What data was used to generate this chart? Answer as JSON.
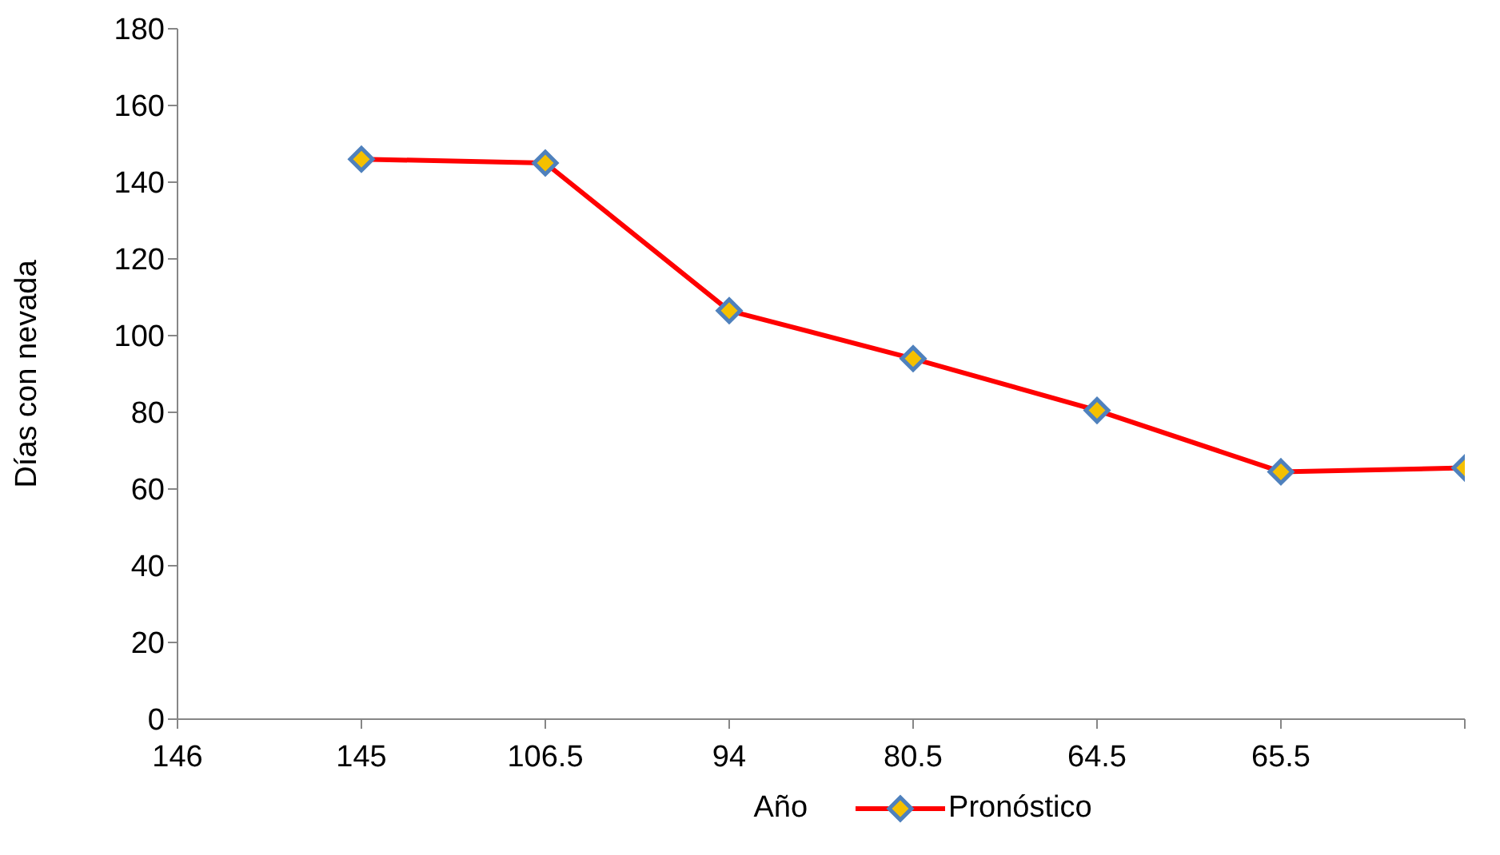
{
  "chart_data": {
    "type": "line",
    "xlabel": "Año",
    "ylabel": "Días con nevada",
    "categories": [
      "146",
      "145",
      "106.5",
      "94",
      "80.5",
      "64.5",
      "65.5",
      null
    ],
    "series": [
      {
        "name": "Pronóstico",
        "color": "#ff0000",
        "values": [
          null,
          146,
          145,
          106.5,
          94,
          80.5,
          64.5,
          65.5
        ]
      }
    ],
    "ylim": [
      0,
      180
    ],
    "yticks": [
      0,
      20,
      40,
      60,
      80,
      100,
      120,
      140,
      160,
      180
    ],
    "grid": false,
    "legend": "bottom",
    "marker": "diamond",
    "line_style": "solid"
  }
}
